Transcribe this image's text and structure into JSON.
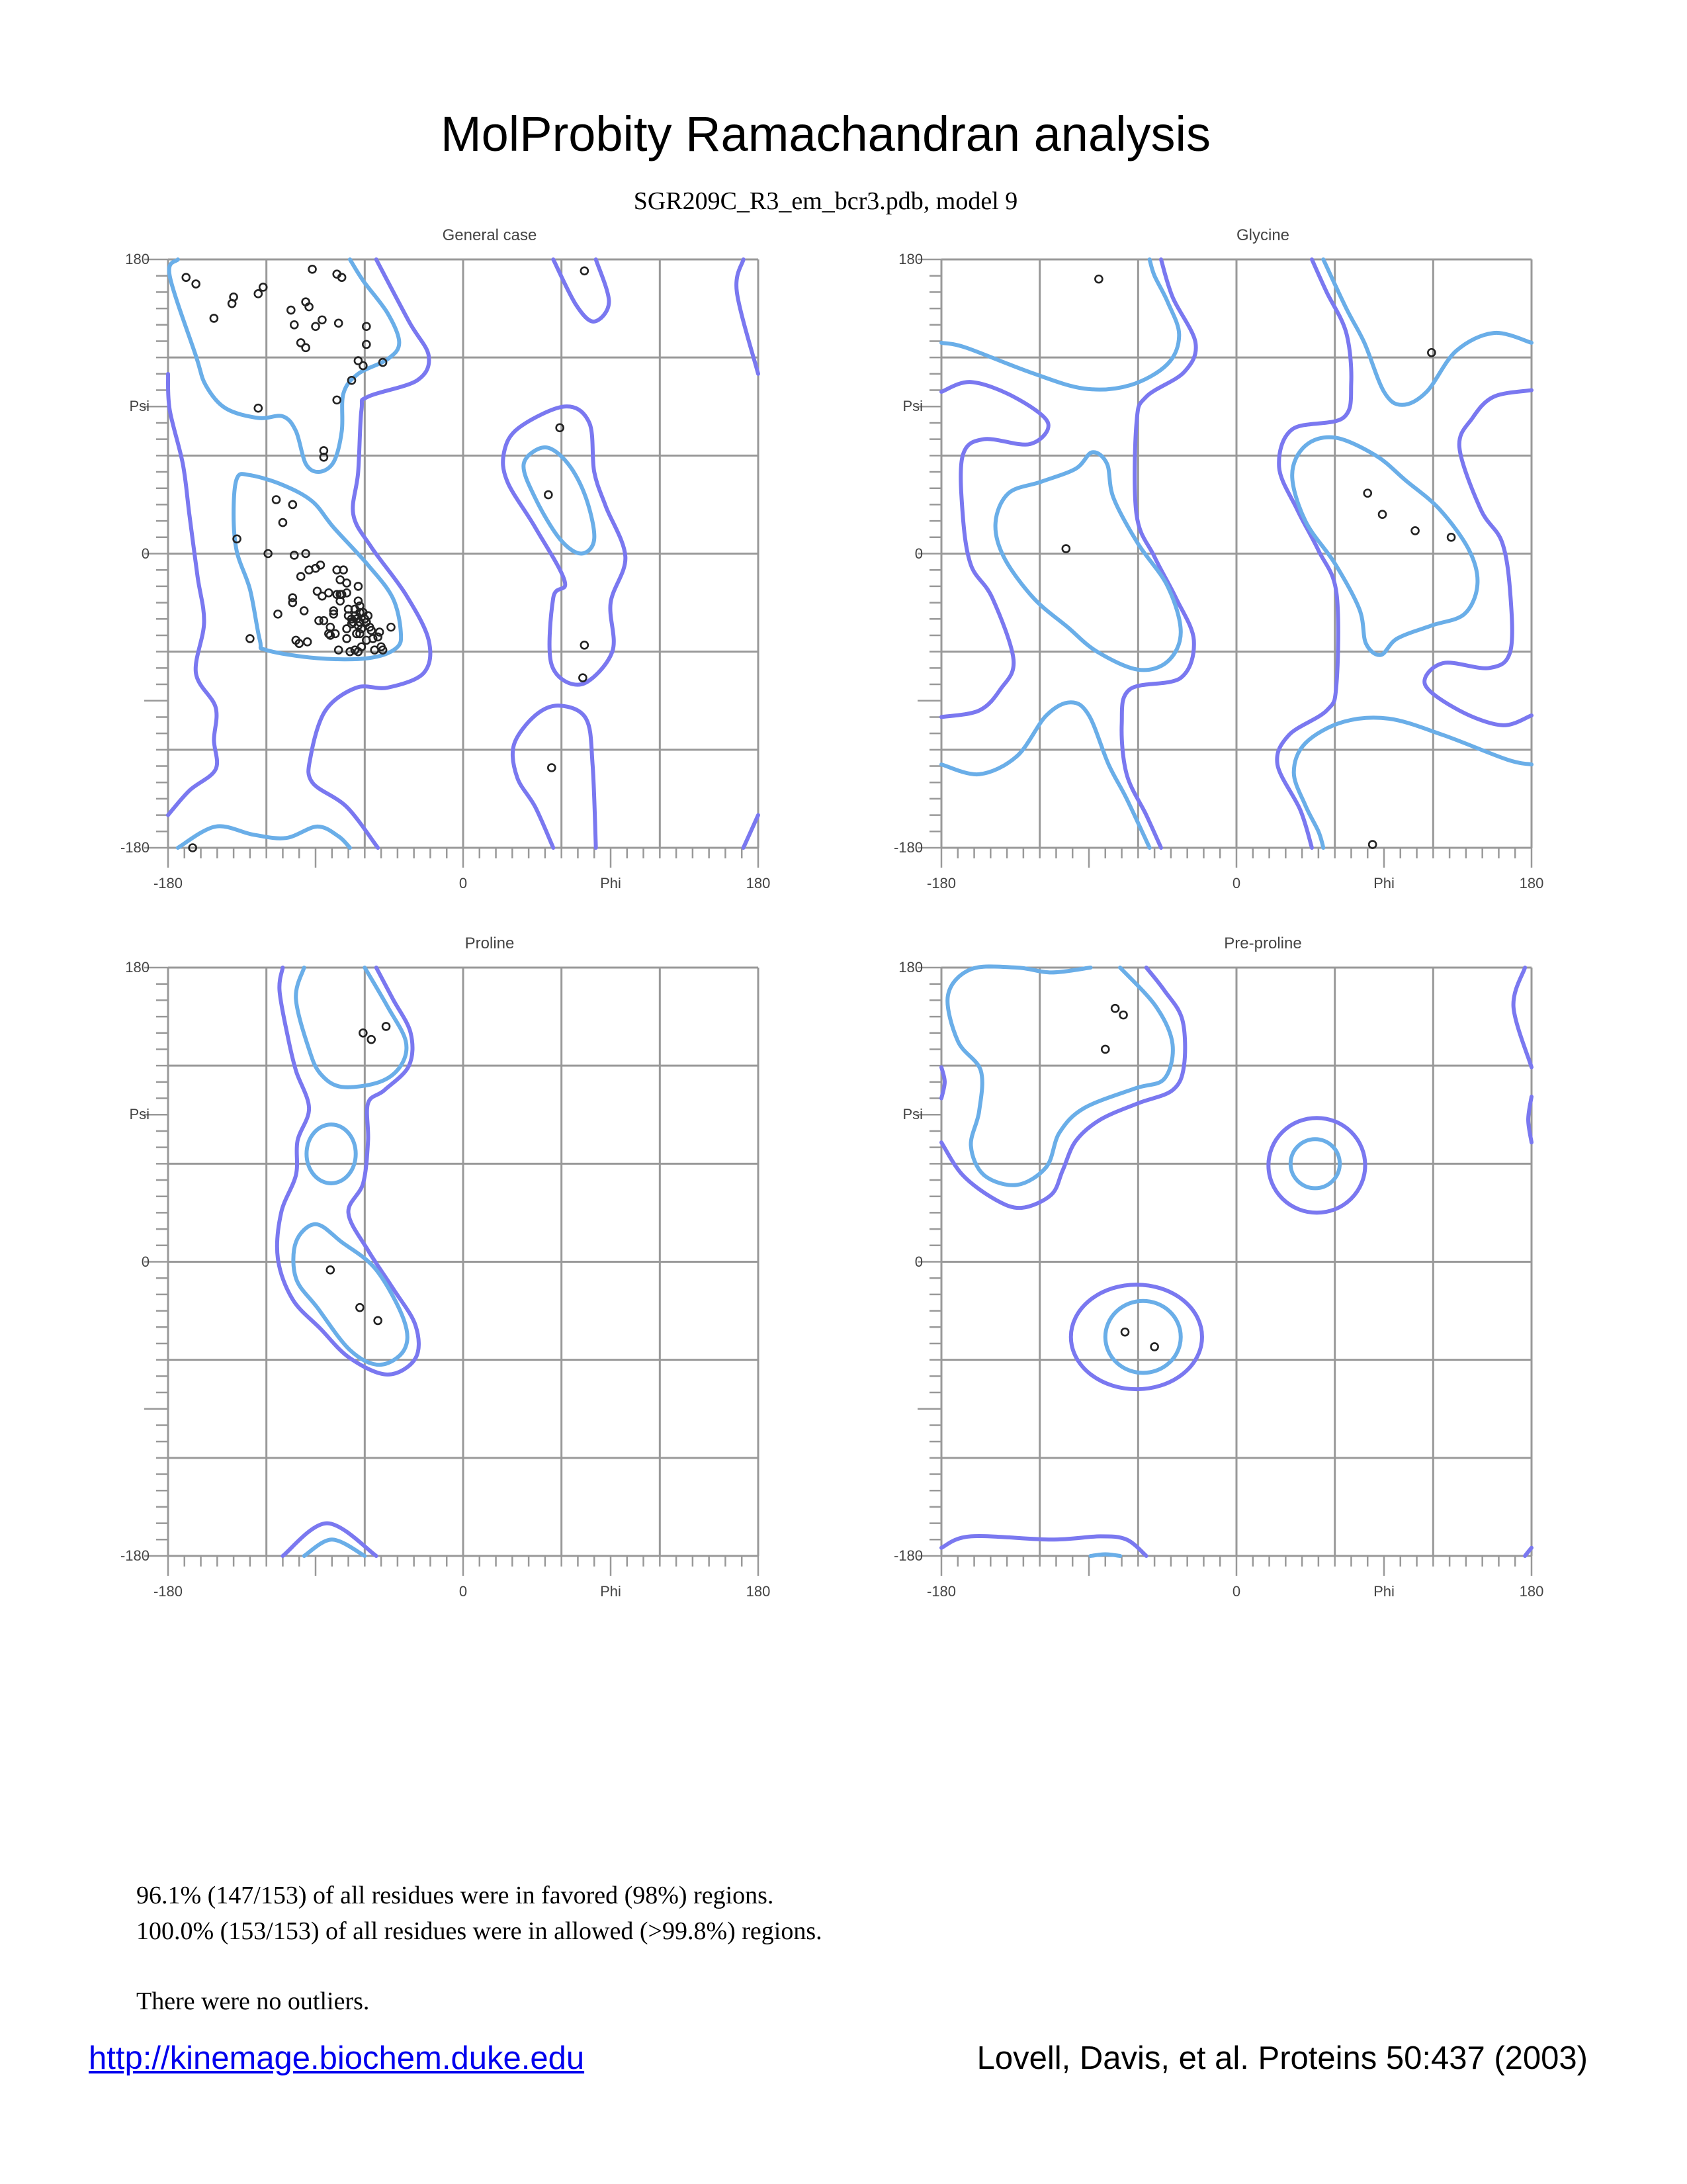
{
  "header": {
    "title": "MolProbity Ramachandran analysis",
    "subtitle": "SGR209C_R3_em_bcr3.pdb, model 9"
  },
  "colors": {
    "favored_contour": "#6aaee8",
    "allowed_contour": "#7a78f0",
    "grid": "#999999",
    "points": "#222222"
  },
  "chart_data": [
    {
      "type": "scatter",
      "title": "General case",
      "xlabel": "Phi",
      "ylabel": "Psi",
      "xlim": [
        -180,
        180
      ],
      "ylim": [
        -180,
        180
      ],
      "x_tick_labels": [
        "-180",
        "0",
        "Phi",
        "180"
      ],
      "y_tick_labels": [
        "180",
        "Psi",
        "0",
        "-180"
      ],
      "grid": true,
      "points": [
        [
          -169,
          169
        ],
        [
          -163,
          165
        ],
        [
          -152,
          144
        ],
        [
          -141,
          153
        ],
        [
          -140,
          157
        ],
        [
          -125,
          159
        ],
        [
          -122,
          163
        ],
        [
          -92,
          174
        ],
        [
          -77,
          171
        ],
        [
          -74,
          169
        ],
        [
          -105,
          149
        ],
        [
          -96,
          154
        ],
        [
          -94,
          151
        ],
        [
          -103,
          140
        ],
        [
          -90,
          139
        ],
        [
          -86,
          143
        ],
        [
          -76,
          141
        ],
        [
          -59,
          139
        ],
        [
          -59,
          128
        ],
        [
          -99,
          129
        ],
        [
          -96,
          126
        ],
        [
          -64,
          118
        ],
        [
          -61,
          115
        ],
        [
          -49,
          117
        ],
        [
          -68,
          106
        ],
        [
          -77,
          94
        ],
        [
          -125,
          89
        ],
        [
          -85,
          63
        ],
        [
          -85,
          59
        ],
        [
          -165,
          -180
        ],
        [
          74,
          173
        ],
        [
          59,
          77
        ],
        [
          52,
          36
        ],
        [
          74,
          -56
        ],
        [
          73,
          -76
        ],
        [
          54,
          -131
        ],
        [
          -114,
          33
        ],
        [
          -104,
          30
        ],
        [
          -110,
          19
        ],
        [
          -138,
          9
        ],
        [
          -119,
          0
        ],
        [
          -103,
          -1
        ],
        [
          -96,
          0
        ],
        [
          -99,
          -14
        ],
        [
          -94,
          -10
        ],
        [
          -90,
          -9
        ],
        [
          -87,
          -7
        ],
        [
          -77,
          -10
        ],
        [
          -73,
          -10
        ],
        [
          -75,
          -16
        ],
        [
          -71,
          -18
        ],
        [
          -64,
          -20
        ],
        [
          -89,
          -23
        ],
        [
          -86,
          -26
        ],
        [
          -82,
          -24
        ],
        [
          -77,
          -25
        ],
        [
          -75,
          -25
        ],
        [
          -74,
          -25
        ],
        [
          -75,
          -29
        ],
        [
          -71,
          -24
        ],
        [
          -104,
          -27
        ],
        [
          -104,
          -30
        ],
        [
          -113,
          -37
        ],
        [
          -97,
          -35
        ],
        [
          -79,
          -35
        ],
        [
          -79,
          -37
        ],
        [
          -70,
          -34
        ],
        [
          -70,
          -38
        ],
        [
          -68,
          -40
        ],
        [
          -64,
          -29
        ],
        [
          -63,
          -32
        ],
        [
          -66,
          -34
        ],
        [
          -63,
          -36
        ],
        [
          -61,
          -36
        ],
        [
          -65,
          -40
        ],
        [
          -67,
          -42
        ],
        [
          -63,
          -42
        ],
        [
          -59,
          -42
        ],
        [
          -57,
          -45
        ],
        [
          -65,
          -49
        ],
        [
          -63,
          -49
        ],
        [
          -71,
          -46
        ],
        [
          -56,
          -47
        ],
        [
          -51,
          -48
        ],
        [
          -44,
          -45
        ],
        [
          -81,
          -45
        ],
        [
          -82,
          -49
        ],
        [
          -81,
          -50
        ],
        [
          -78,
          -49
        ],
        [
          -71,
          -52
        ],
        [
          -59,
          -53
        ],
        [
          -55,
          -52
        ],
        [
          -52,
          -51
        ],
        [
          -88,
          -41
        ],
        [
          -85,
          -41
        ],
        [
          -102,
          -53
        ],
        [
          -100,
          -55
        ],
        [
          -95,
          -54
        ],
        [
          -130,
          -52
        ],
        [
          -76,
          -59
        ],
        [
          -69,
          -60
        ],
        [
          -64,
          -60
        ],
        [
          -62,
          -57
        ],
        [
          -54,
          -59
        ],
        [
          -50,
          -57
        ],
        [
          -49,
          -59
        ],
        [
          -66,
          -59
        ],
        [
          -66,
          -38
        ],
        [
          -64,
          -44
        ],
        [
          -60,
          -40
        ],
        [
          -62,
          -46
        ],
        [
          -68,
          -43
        ],
        [
          -58,
          -38
        ]
      ]
    },
    {
      "type": "scatter",
      "title": "Glycine",
      "xlabel": "Phi",
      "ylabel": "Psi",
      "xlim": [
        -180,
        180
      ],
      "ylim": [
        -180,
        180
      ],
      "x_tick_labels": [
        "-180",
        "0",
        "Phi",
        "180"
      ],
      "y_tick_labels": [
        "180",
        "Psi",
        "0",
        "-180"
      ],
      "grid": true,
      "points": [
        [
          -84,
          168
        ],
        [
          119,
          123
        ],
        [
          -104,
          3
        ],
        [
          80,
          37
        ],
        [
          89,
          24
        ],
        [
          109,
          14
        ],
        [
          131,
          10
        ],
        [
          83,
          -178
        ]
      ]
    },
    {
      "type": "scatter",
      "title": "Proline",
      "xlabel": "Phi",
      "ylabel": "Psi",
      "xlim": [
        -180,
        180
      ],
      "ylim": [
        -180,
        180
      ],
      "x_tick_labels": [
        "-180",
        "0",
        "Phi",
        "180"
      ],
      "y_tick_labels": [
        "180",
        "Psi",
        "0",
        "-180"
      ],
      "grid": true,
      "points": [
        [
          -61,
          140
        ],
        [
          -56,
          136
        ],
        [
          -47,
          144
        ],
        [
          -81,
          -5
        ],
        [
          -63,
          -28
        ],
        [
          -52,
          -36
        ]
      ]
    },
    {
      "type": "scatter",
      "title": "Pre-proline",
      "xlabel": "Phi",
      "ylabel": "Psi",
      "xlim": [
        -180,
        180
      ],
      "ylim": [
        -180,
        180
      ],
      "x_tick_labels": [
        "-180",
        "0",
        "Phi",
        "180"
      ],
      "y_tick_labels": [
        "180",
        "Psi",
        "0",
        "-180"
      ],
      "grid": true,
      "points": [
        [
          -74,
          155
        ],
        [
          -69,
          151
        ],
        [
          -80,
          130
        ],
        [
          -68,
          -43
        ],
        [
          -50,
          -52
        ]
      ]
    }
  ],
  "summary": {
    "favored": "96.1% (147/153) of all residues were in favored (98%) regions.",
    "allowed": "100.0% (153/153) of all residues were in allowed (>99.8%) regions.",
    "outliers": "There were no outliers."
  },
  "footer": {
    "link": "http://kinemage.biochem.duke.edu",
    "citation": "Lovell, Davis, et al. Proteins 50:437 (2003)"
  }
}
